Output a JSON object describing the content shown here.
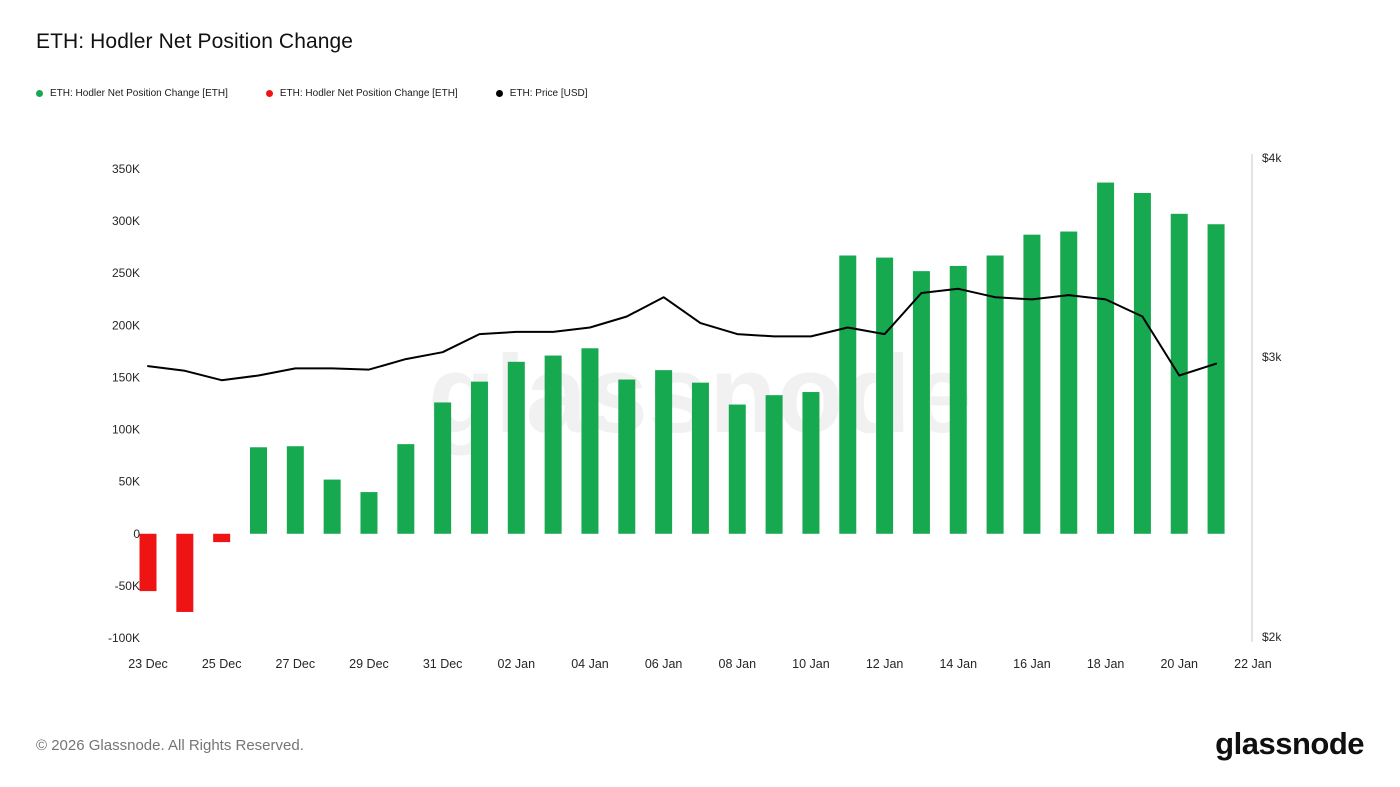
{
  "header": {
    "title": "ETH: Hodler Net Position Change"
  },
  "legend": [
    {
      "label": "ETH: Hodler Net Position Change [ETH]",
      "color": "#17a94f"
    },
    {
      "label": "ETH: Hodler Net Position Change [ETH]",
      "color": "#ee1414"
    },
    {
      "label": "ETH: Price [USD]",
      "color": "#000000"
    }
  ],
  "watermark": "glassnode",
  "footer": {
    "copyright": "© 2026 Glassnode. All Rights Reserved.",
    "brand": "glassnode"
  },
  "chart_data": {
    "type": "bar",
    "title": "ETH: Hodler Net Position Change",
    "x": [
      "23 Dec",
      "24 Dec",
      "25 Dec",
      "26 Dec",
      "27 Dec",
      "28 Dec",
      "29 Dec",
      "30 Dec",
      "31 Dec",
      "01 Jan",
      "02 Jan",
      "03 Jan",
      "04 Jan",
      "05 Jan",
      "06 Jan",
      "07 Jan",
      "08 Jan",
      "09 Jan",
      "10 Jan",
      "11 Jan",
      "12 Jan",
      "13 Jan",
      "14 Jan",
      "15 Jan",
      "16 Jan",
      "17 Jan",
      "18 Jan",
      "19 Jan",
      "20 Jan",
      "21 Jan"
    ],
    "x_ticks": [
      "23 Dec",
      "25 Dec",
      "27 Dec",
      "29 Dec",
      "31 Dec",
      "02 Jan",
      "04 Jan",
      "06 Jan",
      "08 Jan",
      "10 Jan",
      "12 Jan",
      "14 Jan",
      "16 Jan",
      "18 Jan",
      "20 Jan",
      "22 Jan"
    ],
    "series": [
      {
        "name": "ETH: Hodler Net Position Change [ETH]",
        "type": "bar",
        "unit": "ETH",
        "positive_color": "#17a94f",
        "negative_color": "#ee1414",
        "values": [
          -55000,
          -75000,
          -8000,
          83000,
          84000,
          52000,
          40000,
          86000,
          126000,
          146000,
          165000,
          171000,
          178000,
          148000,
          157000,
          145000,
          124000,
          133000,
          136000,
          267000,
          265000,
          252000,
          257000,
          267000,
          287000,
          290000,
          337000,
          327000,
          307000,
          297000
        ]
      },
      {
        "name": "ETH: Price [USD]",
        "type": "line",
        "unit": "USD",
        "color": "#000000",
        "values": [
          2960,
          2940,
          2900,
          2920,
          2950,
          2950,
          2945,
          2990,
          3020,
          3100,
          3110,
          3110,
          3130,
          3180,
          3270,
          3150,
          3100,
          3090,
          3090,
          3130,
          3100,
          3290,
          3310,
          3270,
          3260,
          3280,
          3260,
          3180,
          2920,
          2970
        ]
      }
    ],
    "left_axis": {
      "label": "ETH",
      "min": -100000,
      "max": 350000,
      "ticks": [
        "350K",
        "300K",
        "250K",
        "200K",
        "150K",
        "100K",
        "50K",
        "0",
        "-50K",
        "-100K"
      ],
      "tick_values": [
        350000,
        300000,
        250000,
        200000,
        150000,
        100000,
        50000,
        0,
        -50000,
        -100000
      ]
    },
    "right_axis": {
      "label": "USD",
      "min": 2000,
      "max": 4000,
      "scale": "log",
      "ticks": [
        "$4k",
        "$3k",
        "$2k"
      ],
      "tick_values": [
        4000,
        3000,
        2000
      ]
    },
    "grid": false,
    "legend_position": "top-left"
  }
}
